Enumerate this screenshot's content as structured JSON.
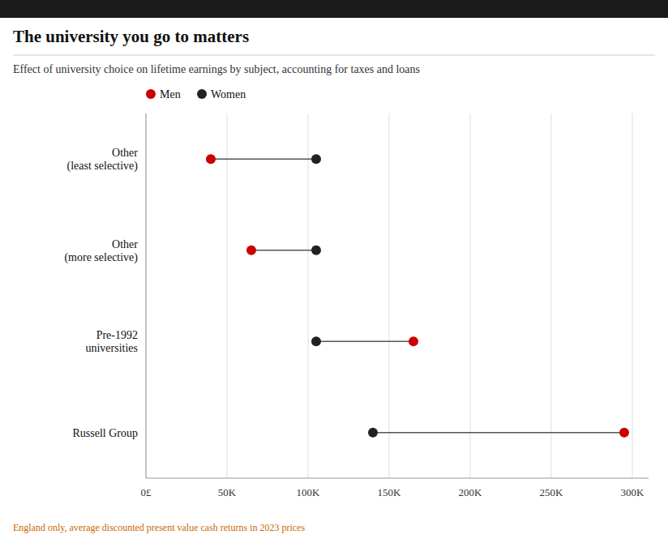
{
  "chart_data": {
    "type": "dumbbell",
    "orientation": "horizontal",
    "title": "The university you go to matters",
    "subtitle": "Effect of university choice on lifetime earnings by subject, accounting for taxes and loans",
    "footnote": "England only, average discounted present value cash returns in 2023 prices",
    "categories": [
      "Other\n(least selective)",
      "Other\n(more selective)",
      "Pre-1992\nuniversities",
      "Russell Group"
    ],
    "series": [
      {
        "name": "Men",
        "color": "#cc0000",
        "values": [
          40000,
          65000,
          165000,
          295000
        ]
      },
      {
        "name": "Women",
        "color": "#222222",
        "values": [
          105000,
          105000,
          105000,
          140000
        ]
      }
    ],
    "color": "#555555",
    "xlim": [
      0,
      310000
    ],
    "xticks": [
      {
        "value": 0,
        "label": "0£"
      },
      {
        "value": 50000,
        "label": "50K"
      },
      {
        "value": 100000,
        "label": "100K"
      },
      {
        "value": 150000,
        "label": "150K"
      },
      {
        "value": 200000,
        "label": "200K"
      },
      {
        "value": 250000,
        "label": "250K"
      },
      {
        "value": 300000,
        "label": "300K"
      }
    ],
    "grid": true,
    "legend": "upper left"
  }
}
